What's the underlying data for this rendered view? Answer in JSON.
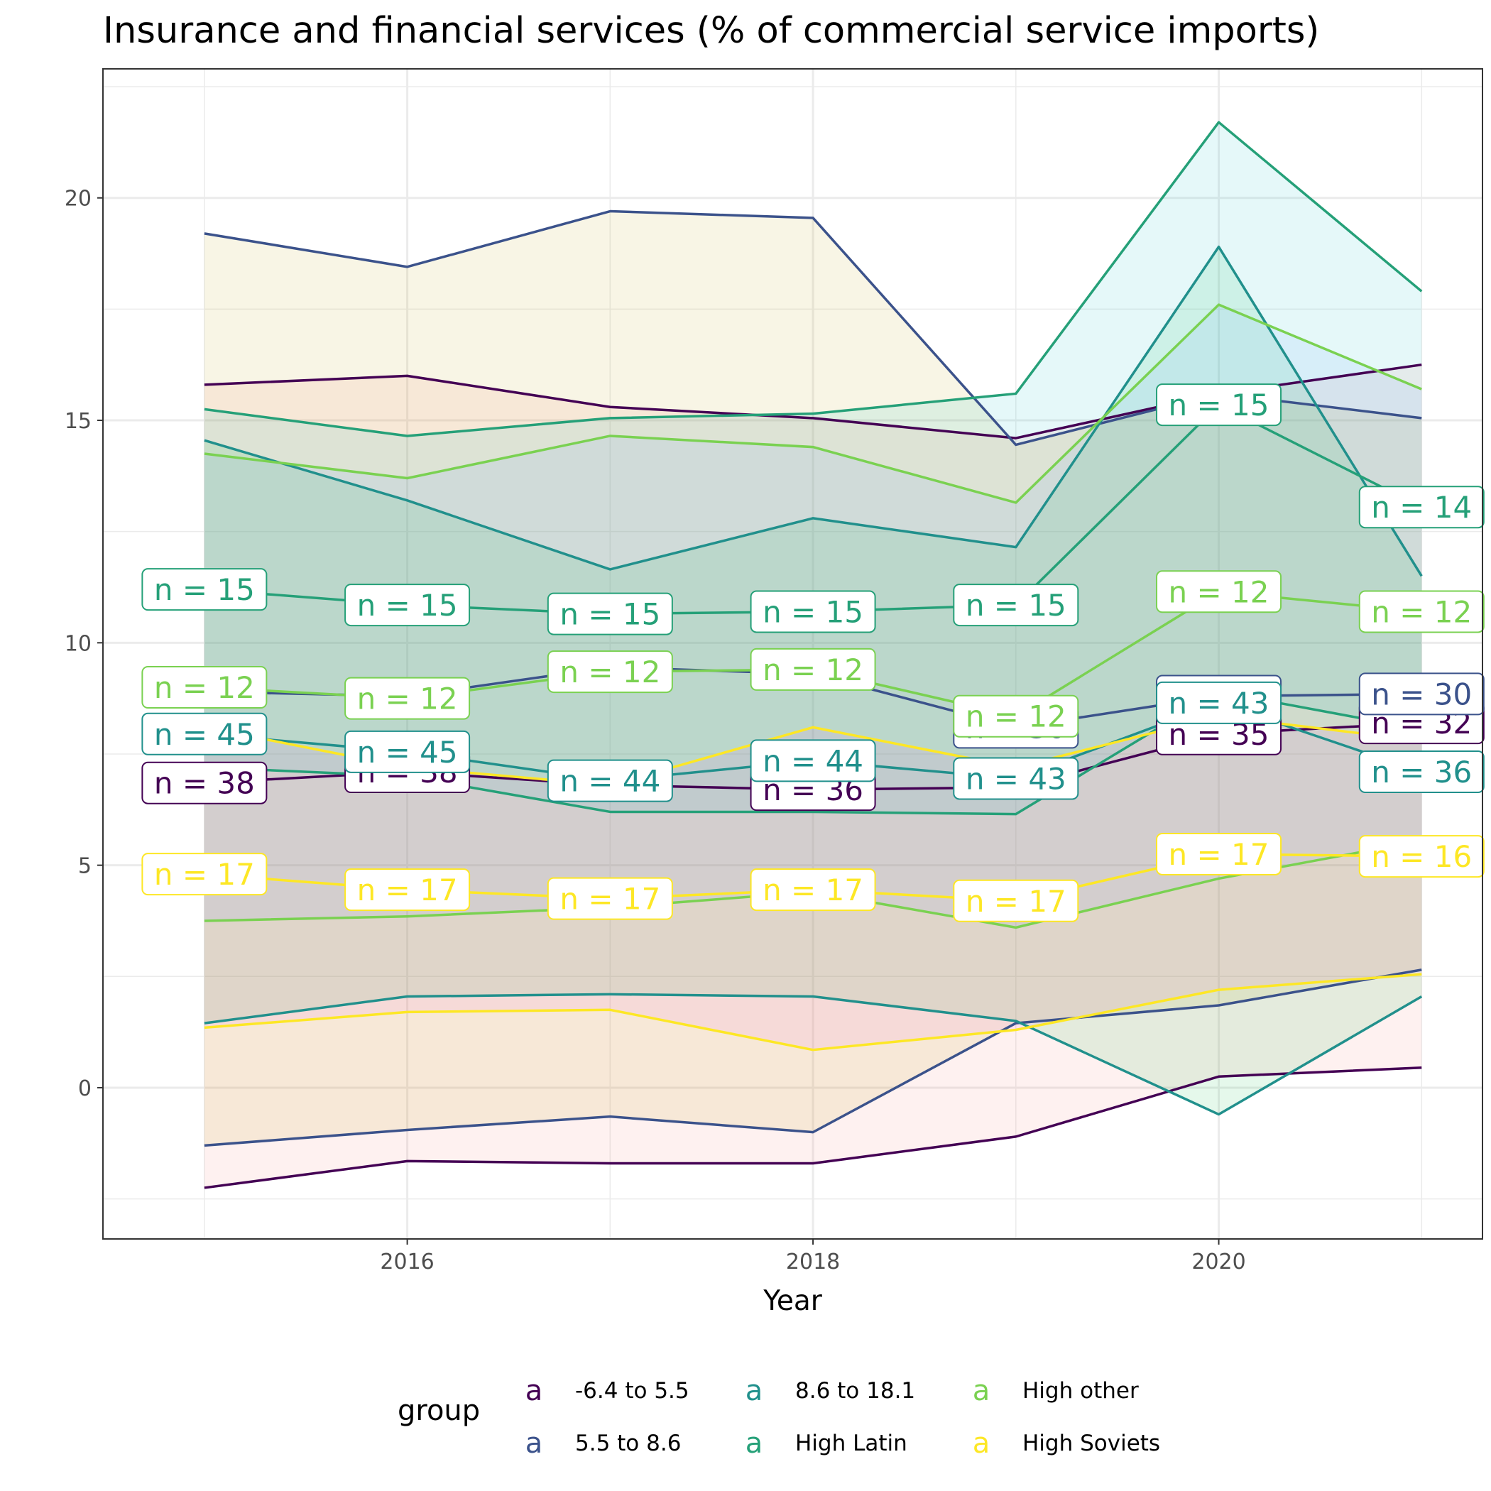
{
  "chart_data": {
    "type": "line",
    "title": "Insurance and financial services (% of commercial service imports)",
    "xlabel": "Year",
    "ylabel": "",
    "x": [
      2015,
      2016,
      2017,
      2018,
      2019,
      2020,
      2021
    ],
    "xlim": [
      2014.5,
      2021.3
    ],
    "ylim": [
      -3.4,
      22.9
    ],
    "xticks": [
      2016,
      2018,
      2020
    ],
    "yticks": [
      0,
      5,
      10,
      15,
      20
    ],
    "grid": true,
    "legend": {
      "title": "group",
      "position": "bottom",
      "key_glyph": "a"
    },
    "series": [
      {
        "name": "-6.4 to 5.5",
        "color": "#440154",
        "fill": "#f8766d",
        "mean": [
          6.85,
          7.1,
          6.8,
          6.7,
          6.75,
          7.95,
          8.2
        ],
        "upper": [
          15.8,
          16.0,
          15.3,
          15.05,
          14.6,
          15.6,
          16.25
        ],
        "lower": [
          -2.25,
          -1.65,
          -1.7,
          -1.7,
          -1.1,
          0.25,
          0.45
        ],
        "labels": [
          "n = 38",
          "n = 38",
          "",
          "n = 36",
          "",
          "n = 35",
          "n = 32"
        ]
      },
      {
        "name": "5.5 to 8.6",
        "color": "#3b528b",
        "fill": "#b79f00",
        "mean": [
          8.9,
          8.8,
          9.45,
          9.3,
          8.1,
          8.8,
          8.85
        ],
        "upper": [
          19.2,
          18.45,
          19.7,
          19.55,
          14.45,
          15.6,
          15.05
        ],
        "lower": [
          -1.3,
          -0.95,
          -0.65,
          -1.0,
          1.45,
          1.85,
          2.65
        ],
        "labels": [
          "",
          "",
          "",
          "",
          "n = 30",
          "n = 34",
          "n = 30"
        ]
      },
      {
        "name": "8.6 to 18.1",
        "color": "#21908c",
        "fill": "#00ba38",
        "mean": [
          7.95,
          7.55,
          6.9,
          7.35,
          6.95,
          8.65,
          7.1
        ],
        "upper": [
          14.55,
          13.2,
          11.65,
          12.8,
          12.15,
          18.9,
          11.5
        ],
        "lower": [
          1.45,
          2.05,
          2.1,
          2.05,
          1.5,
          -0.6,
          2.05
        ],
        "labels": [
          "n = 45",
          "n = 45",
          "n = 44",
          "n = 44",
          "n = 43",
          "n = 43",
          "n = 36"
        ]
      },
      {
        "name": "High Latin",
        "color": "#25a078",
        "fill": "#00bfc4",
        "mean": [
          11.2,
          10.85,
          10.65,
          10.7,
          10.85,
          15.35,
          13.05
        ],
        "upper": [
          15.25,
          14.65,
          15.05,
          15.15,
          15.6,
          21.7,
          17.9
        ],
        "lower": [
          7.2,
          7.0,
          6.2,
          6.2,
          6.15,
          8.9,
          8.05
        ],
        "labels": [
          "n = 15",
          "n = 15",
          "n = 15",
          "n = 15",
          "n = 15",
          "n = 15",
          "n = 14"
        ]
      },
      {
        "name": "High other",
        "color": "#7ad151",
        "fill": "#619cff",
        "mean": [
          9.0,
          8.75,
          9.35,
          9.4,
          8.35,
          11.15,
          10.7
        ],
        "upper": [
          14.25,
          13.7,
          14.65,
          14.4,
          13.15,
          17.6,
          15.7
        ],
        "lower": [
          3.75,
          3.85,
          4.05,
          4.4,
          3.6,
          4.7,
          5.55
        ],
        "labels": [
          "n = 12",
          "n = 12",
          "n = 12",
          "n = 12",
          "n = 12",
          "n = 12",
          "n = 12"
        ]
      },
      {
        "name": "High Soviets",
        "color": "#fde725",
        "fill": "#f564e3",
        "mean": [
          4.8,
          4.45,
          4.25,
          4.45,
          4.2,
          5.25,
          5.2
        ],
        "upper": [
          8.1,
          7.2,
          6.8,
          8.1,
          7.2,
          8.35,
          7.8
        ],
        "lower": [
          1.35,
          1.7,
          1.75,
          0.85,
          1.3,
          2.2,
          2.55
        ],
        "labels": [
          "n = 17",
          "n = 17",
          "n = 17",
          "n = 17",
          "n = 17",
          "n = 17",
          "n = 16"
        ]
      }
    ]
  }
}
